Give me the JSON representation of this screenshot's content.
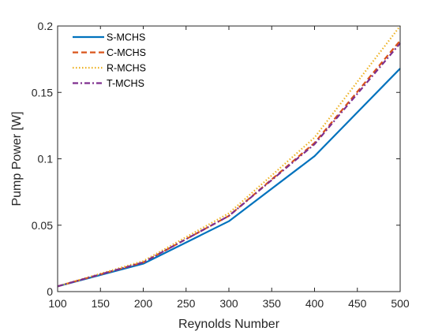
{
  "chart_data": {
    "type": "line",
    "xlabel": "Reynolds Number",
    "ylabel": "Pump Power [W]",
    "xlim": [
      100,
      500
    ],
    "ylim": [
      0,
      0.2
    ],
    "x_ticks": [
      "100",
      "150",
      "200",
      "250",
      "300",
      "350",
      "400",
      "450",
      "500"
    ],
    "y_ticks": [
      "0",
      "0.05",
      "0.1",
      "0.15",
      "0.2"
    ],
    "grid": false,
    "legend_position": "top-left",
    "x": [
      100,
      200,
      300,
      400,
      500
    ],
    "series": [
      {
        "name": "S-MCHS",
        "values": [
          0.004,
          0.021,
          0.053,
          0.102,
          0.168
        ],
        "color": "#0072BD",
        "dash": "solid"
      },
      {
        "name": "C-MCHS",
        "values": [
          0.004,
          0.022,
          0.057,
          0.112,
          0.189
        ],
        "color": "#D95319",
        "dash": "dashed"
      },
      {
        "name": "R-MCHS",
        "values": [
          0.004,
          0.023,
          0.059,
          0.116,
          0.2
        ],
        "color": "#EDB120",
        "dash": "dotted"
      },
      {
        "name": "T-MCHS",
        "values": [
          0.004,
          0.022,
          0.057,
          0.111,
          0.187
        ],
        "color": "#7E2F8E",
        "dash": "dash-dot"
      }
    ]
  }
}
